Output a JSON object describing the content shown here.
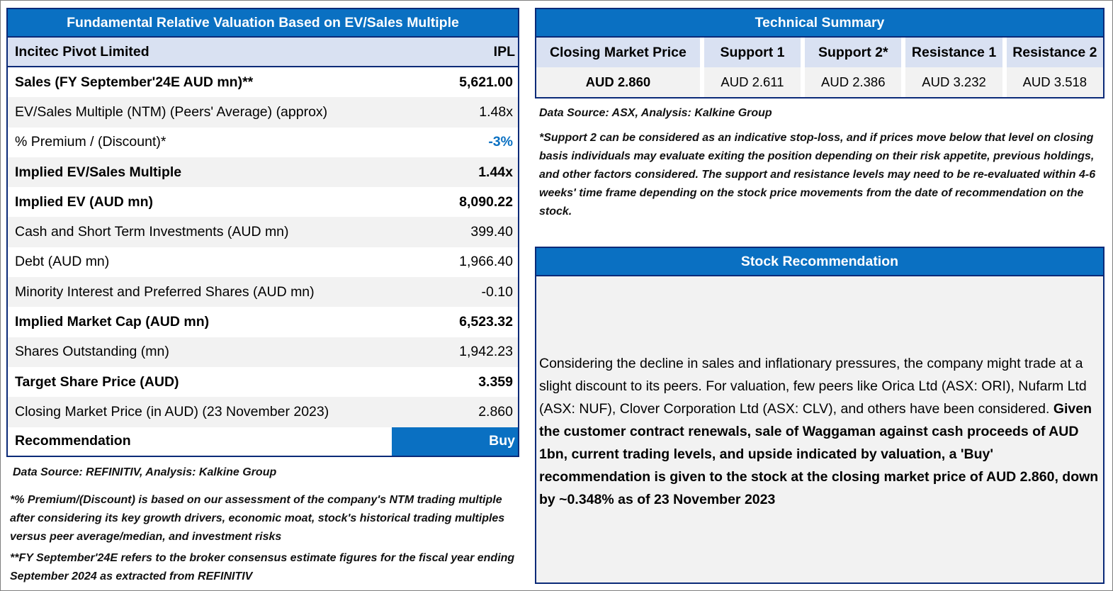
{
  "valuation": {
    "title": "Fundamental Relative Valuation Based on EV/Sales Multiple",
    "company": "Incitec Pivot Limited",
    "ticker": "IPL",
    "rows": [
      {
        "label": "Sales (FY September'24E AUD mn)**",
        "value": "5,621.00",
        "bold": true
      },
      {
        "label": "EV/Sales Multiple (NTM)  (Peers' Average) (approx)",
        "value": "1.48x",
        "bold": false
      },
      {
        "label": "% Premium / (Discount)*",
        "value": "-3%",
        "bold": false
      },
      {
        "label": "Implied EV/Sales Multiple",
        "value": "1.44x",
        "bold": true
      },
      {
        "label": "Implied EV (AUD mn)",
        "value": "8,090.22",
        "bold": true
      },
      {
        "label": "Cash and Short Term Investments (AUD mn)",
        "value": "399.40",
        "bold": false
      },
      {
        "label": "Debt (AUD mn)",
        "value": "1,966.40",
        "bold": false
      },
      {
        "label": "Minority Interest and Preferred Shares (AUD mn)",
        "value": "-0.10",
        "bold": false
      },
      {
        "label": "Implied Market Cap (AUD mn)",
        "value": "6,523.32",
        "bold": true
      },
      {
        "label": "Shares Outstanding (mn)",
        "value": "1,942.23",
        "bold": false
      },
      {
        "label": "Target Share Price (AUD)",
        "value": "3.359",
        "bold": true
      },
      {
        "label": "Closing Market Price (in AUD) (23 November 2023)",
        "value": "2.860",
        "bold": false
      }
    ],
    "recommendation_label": "Recommendation",
    "recommendation_value": "Buy",
    "accent_color": "#0a70c2",
    "data_source": "Data Source: REFINITIV, Analysis: Kalkine Group",
    "note1": "*% Premium/(Discount) is based on our assessment of the company's NTM trading multiple after considering its key growth drivers, economic moat, stock's historical trading multiples versus peer average/median, and investment risks",
    "note2": "**FY September'24E refers to the broker consensus estimate figures for the fiscal year ending September 2024  as extracted from REFINITIV"
  },
  "technical": {
    "title": "Technical Summary",
    "columns": [
      {
        "header": "Closing Market Price",
        "value": "AUD 2.860"
      },
      {
        "header": "Support 1",
        "value": "AUD 2.611"
      },
      {
        "header": "Support 2*",
        "value": "AUD 2.386"
      },
      {
        "header": "Resistance 1",
        "value": "AUD 3.232"
      },
      {
        "header": "Resistance 2",
        "value": "AUD 3.518"
      }
    ],
    "data_source": "Data Source: ASX, Analysis: Kalkine Group",
    "note": "*Support 2 can be considered as an indicative stop-loss, and if prices move below that level on closing basis individuals may evaluate exiting the position depending on their risk appetite, previous holdings, and other factors considered. The support and resistance levels may need to be re-evaluated within 4-6 weeks' time frame depending on the stock price movements from the date of recommendation on the stock."
  },
  "recommendation": {
    "title": "Stock Recommendation",
    "text_normal": "Considering the decline in sales and inflationary pressures, the company might trade at a slight discount to its peers. For valuation, few peers like Orica Ltd (ASX: ORI), Nufarm Ltd (ASX: NUF), Clover Corporation Ltd (ASX: CLV), and others have been considered. ",
    "text_bold": "Given the customer contract renewals, sale of Waggaman against cash proceeds of AUD 1bn, current trading levels, and upside indicated by valuation, a 'Buy' recommendation is given to the stock at the closing market price of AUD 2.860, down by ~0.348% as of 23 November 2023"
  }
}
